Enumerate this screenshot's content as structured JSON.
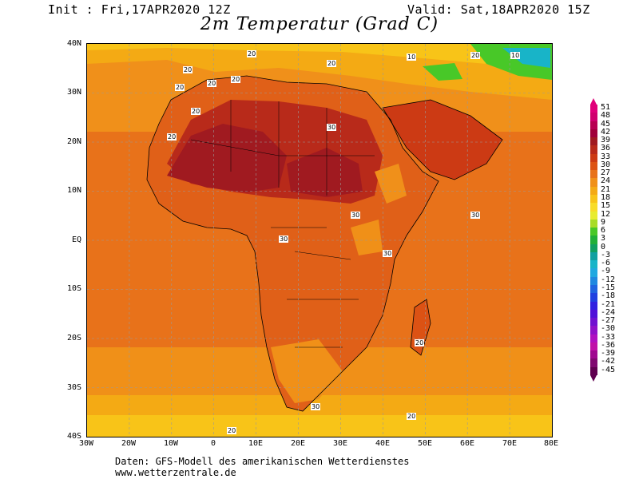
{
  "header": {
    "init": "Init : Fri,17APR2020 12Z",
    "valid": "Valid: Sat,18APR2020 15Z",
    "title": "2m Temperatur (Grad C)"
  },
  "map": {
    "lat_labels": [
      "40N",
      "30N",
      "20N",
      "10N",
      "EQ",
      "10S",
      "20S",
      "30S",
      "40S"
    ],
    "lon_labels": [
      "30W",
      "20W",
      "10W",
      "0",
      "10E",
      "20E",
      "30E",
      "40E",
      "50E",
      "60E",
      "70E",
      "80E"
    ],
    "contour_labels": [
      "20",
      "30",
      "20",
      "30",
      "20",
      "10",
      "20",
      "30",
      "30",
      "20",
      "20",
      "30",
      "20",
      "20",
      "20",
      "10",
      "30",
      "20",
      "20",
      "20"
    ]
  },
  "colorbar": {
    "labels": [
      "51",
      "48",
      "45",
      "42",
      "39",
      "36",
      "33",
      "30",
      "27",
      "24",
      "21",
      "18",
      "15",
      "12",
      "9",
      "6",
      "3",
      "0",
      "-3",
      "-6",
      "-9",
      "-12",
      "-15",
      "-18",
      "-21",
      "-24",
      "-27",
      "-30",
      "-33",
      "-36",
      "-39",
      "-42",
      "-45"
    ],
    "colors": [
      "#e0007a",
      "#d0006e",
      "#b80052",
      "#a0003a",
      "#a01a20",
      "#b82a1a",
      "#cc3a14",
      "#dc5214",
      "#e8721a",
      "#f09018",
      "#f4aa14",
      "#f8c418",
      "#f8dc28",
      "#e8ec30",
      "#a8dc28",
      "#48c828",
      "#20b038",
      "#10a060",
      "#10a0a0",
      "#18b4c8",
      "#20a8e0",
      "#2088e0",
      "#2064e0",
      "#2040e0",
      "#3020e0",
      "#5010d8",
      "#7010d0",
      "#9010c8",
      "#b010c0",
      "#c010a8",
      "#a00890",
      "#800870",
      "#600050"
    ]
  },
  "footer": {
    "line1": "Daten: GFS-Modell des amerikanischen Wetterdienstes",
    "line2": "www.wetterzentrale.de"
  }
}
